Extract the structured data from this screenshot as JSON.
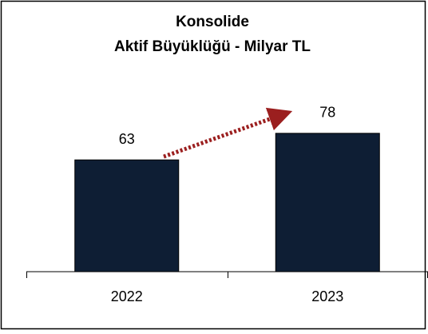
{
  "chart_data": {
    "type": "bar",
    "title": [
      "Konsolide",
      "Aktif Büyüklüğü - Milyar TL"
    ],
    "categories": [
      "2022",
      "2023"
    ],
    "values": [
      63,
      78
    ],
    "color": "#0e1e34"
  }
}
